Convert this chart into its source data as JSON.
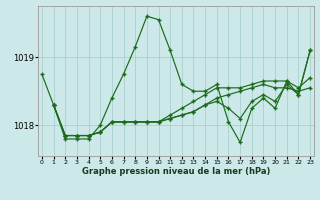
{
  "xlabel": "Graphe pression niveau de la mer (hPa)",
  "bg_color": "#cce8e8",
  "line_color": "#1a6b1a",
  "grid_color": "#aacece",
  "ylim": [
    1017.55,
    1019.75
  ],
  "xlim": [
    -0.3,
    23.3
  ],
  "yticks": [
    1018,
    1019
  ],
  "xtick_labels": [
    "0",
    "1",
    "2",
    "3",
    "4",
    "5",
    "6",
    "7",
    "8",
    "9",
    "10",
    "11",
    "12",
    "13",
    "14",
    "15",
    "16",
    "17",
    "18",
    "19",
    "20",
    "21",
    "22",
    "23"
  ],
  "series": [
    {
      "x": [
        0,
        1,
        2,
        3,
        4,
        5,
        6,
        7,
        8,
        9,
        10,
        11,
        12,
        13,
        14,
        15,
        16,
        17,
        18,
        19,
        20,
        21,
        22,
        23
      ],
      "y": [
        1018.75,
        1018.3,
        1017.8,
        1017.8,
        1017.8,
        1018.0,
        1018.4,
        1018.75,
        1019.15,
        1019.6,
        1019.55,
        1019.1,
        1018.6,
        1018.5,
        1018.5,
        1018.6,
        1018.05,
        1017.75,
        1018.25,
        1018.4,
        1018.25,
        1018.65,
        1018.45,
        1019.1
      ]
    },
    {
      "x": [
        1,
        2,
        3,
        4,
        5,
        6,
        7,
        8,
        9,
        10,
        11,
        12,
        13,
        14,
        15,
        16,
        17,
        18,
        19,
        20,
        21,
        22,
        23
      ],
      "y": [
        1018.3,
        1017.85,
        1017.85,
        1017.85,
        1017.9,
        1018.05,
        1018.05,
        1018.05,
        1018.05,
        1018.05,
        1018.15,
        1018.25,
        1018.35,
        1018.45,
        1018.55,
        1018.55,
        1018.55,
        1018.6,
        1018.65,
        1018.65,
        1018.65,
        1018.55,
        1018.7
      ]
    },
    {
      "x": [
        1,
        2,
        3,
        4,
        5,
        6,
        7,
        8,
        9,
        10,
        11,
        12,
        13,
        14,
        15,
        16,
        17,
        18,
        19,
        20,
        21,
        22,
        23
      ],
      "y": [
        1018.3,
        1017.85,
        1017.85,
        1017.85,
        1017.9,
        1018.05,
        1018.05,
        1018.05,
        1018.05,
        1018.05,
        1018.1,
        1018.15,
        1018.2,
        1018.3,
        1018.4,
        1018.45,
        1018.5,
        1018.55,
        1018.6,
        1018.55,
        1018.55,
        1018.5,
        1018.55
      ]
    },
    {
      "x": [
        1,
        2,
        3,
        4,
        5,
        6,
        7,
        8,
        9,
        10,
        11,
        12,
        13,
        14,
        15,
        16,
        17,
        18,
        19,
        20,
        21,
        22,
        23
      ],
      "y": [
        1018.3,
        1017.85,
        1017.85,
        1017.85,
        1017.9,
        1018.05,
        1018.05,
        1018.05,
        1018.05,
        1018.05,
        1018.1,
        1018.15,
        1018.2,
        1018.3,
        1018.35,
        1018.25,
        1018.1,
        1018.35,
        1018.45,
        1018.35,
        1018.6,
        1018.45,
        1019.1
      ]
    }
  ]
}
